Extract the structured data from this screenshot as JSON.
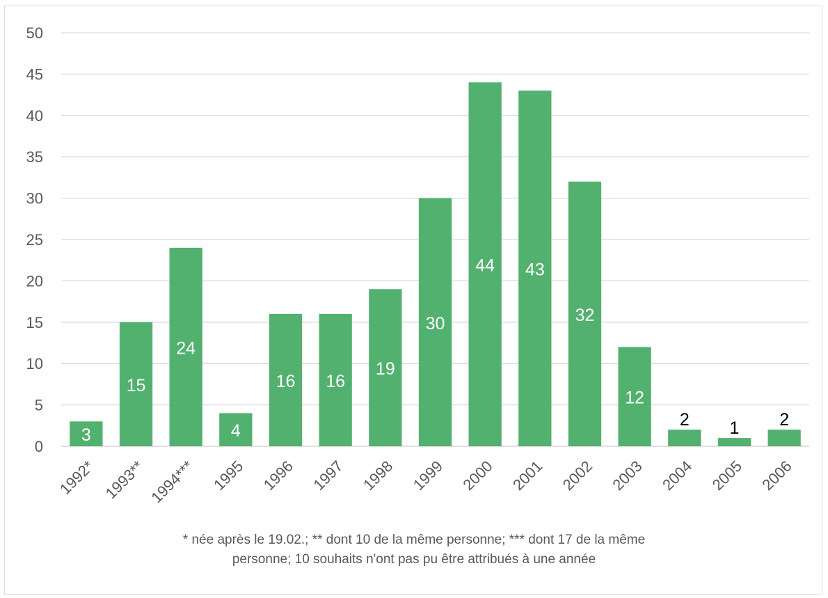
{
  "chart_data": {
    "type": "bar",
    "categories": [
      "1992*",
      "1993**",
      "1994***",
      "1995",
      "1996",
      "1997",
      "1998",
      "1999",
      "2000",
      "2001",
      "2002",
      "2003",
      "2004",
      "2005",
      "2006"
    ],
    "values": [
      3,
      15,
      24,
      4,
      16,
      16,
      19,
      30,
      44,
      43,
      32,
      12,
      2,
      1,
      2
    ],
    "title": "",
    "xlabel": "",
    "ylabel": "",
    "ylim": [
      0,
      50
    ],
    "yticks": [
      0,
      5,
      10,
      15,
      20,
      25,
      30,
      35,
      40,
      45,
      50
    ],
    "grid": true,
    "legend": "none",
    "bar_color": "#52b16f",
    "label_inside_color": "#ffffff",
    "label_outside_color": "#000000",
    "axis_text_color": "#595959",
    "gridline_color": "#d9d9d9"
  },
  "footnote": {
    "line1": "* née après le 19.02.; ** dont 10 de la même personne; *** dont 17 de la même",
    "line2": "personne; 10 souhaits n'ont pas pu être attribués à une année"
  }
}
